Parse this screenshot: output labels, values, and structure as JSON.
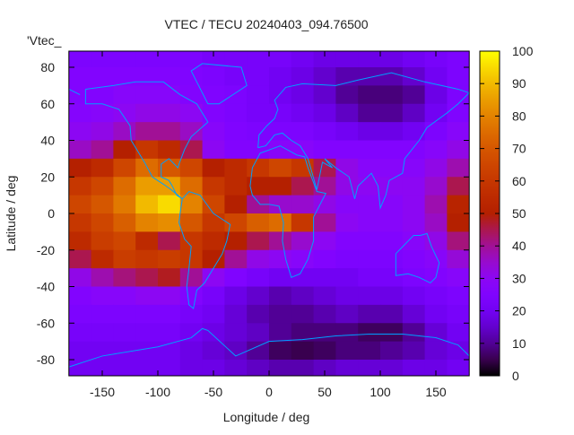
{
  "chart_data": {
    "type": "heatmap",
    "title": "VTEC / TECU 20240403_094.76500",
    "xlabel": "Longitude / deg",
    "ylabel": "Latitude / deg",
    "legend_key": "'Vtec_",
    "xlim": [
      -180,
      180
    ],
    "ylim": [
      -90,
      90
    ],
    "clim": [
      0,
      100
    ],
    "xticks": [
      "-150",
      "-100",
      "-50",
      "0",
      "50",
      "100",
      "150"
    ],
    "xtick_values": [
      -150,
      -100,
      -50,
      0,
      50,
      100,
      150
    ],
    "yticks": [
      "-80",
      "-60",
      "-40",
      "-20",
      "0",
      "20",
      "40",
      "60",
      "80"
    ],
    "ytick_values": [
      -80,
      -60,
      -40,
      -20,
      0,
      20,
      40,
      60,
      80
    ],
    "cbticks": [
      "0",
      "10",
      "20",
      "30",
      "40",
      "50",
      "60",
      "70",
      "80",
      "90",
      "100"
    ],
    "cbtick_values": [
      0,
      10,
      20,
      30,
      40,
      50,
      60,
      70,
      80,
      90,
      100
    ],
    "palette": "black-purple-red-orange-yellow",
    "coastline_color": "#00a0ff",
    "lon_centers": [
      -170,
      -150,
      -130,
      -110,
      -90,
      -70,
      -50,
      -30,
      -10,
      10,
      30,
      50,
      70,
      90,
      110,
      130,
      150,
      170
    ],
    "lat_centers": [
      85,
      75,
      65,
      55,
      45,
      35,
      25,
      15,
      5,
      -5,
      -15,
      -25,
      -35,
      -45,
      -55,
      -65,
      -75,
      -85
    ],
    "values": [
      [
        24,
        24,
        24,
        24,
        24,
        24,
        22,
        22,
        22,
        22,
        20,
        18,
        18,
        18,
        18,
        20,
        22,
        24
      ],
      [
        26,
        26,
        26,
        26,
        26,
        25,
        24,
        22,
        22,
        20,
        18,
        15,
        12,
        12,
        12,
        15,
        20,
        24
      ],
      [
        26,
        26,
        28,
        28,
        28,
        26,
        25,
        24,
        22,
        20,
        18,
        15,
        10,
        8,
        8,
        10,
        18,
        24
      ],
      [
        27,
        28,
        30,
        32,
        32,
        30,
        26,
        24,
        22,
        22,
        20,
        18,
        14,
        10,
        10,
        14,
        20,
        25
      ],
      [
        30,
        32,
        36,
        40,
        40,
        36,
        28,
        25,
        24,
        24,
        24,
        22,
        20,
        18,
        18,
        20,
        24,
        28
      ],
      [
        36,
        40,
        50,
        60,
        55,
        45,
        30,
        26,
        26,
        28,
        28,
        26,
        26,
        26,
        26,
        26,
        28,
        32
      ],
      [
        50,
        55,
        65,
        75,
        70,
        65,
        50,
        55,
        60,
        65,
        60,
        45,
        32,
        28,
        28,
        28,
        32,
        38
      ],
      [
        60,
        65,
        75,
        85,
        85,
        75,
        60,
        55,
        50,
        50,
        45,
        40,
        32,
        30,
        30,
        30,
        35,
        45
      ],
      [
        65,
        70,
        78,
        90,
        95,
        80,
        65,
        50,
        40,
        35,
        35,
        32,
        28,
        28,
        28,
        30,
        38,
        52
      ],
      [
        60,
        65,
        72,
        80,
        82,
        70,
        60,
        65,
        72,
        75,
        60,
        40,
        30,
        28,
        28,
        30,
        36,
        50
      ],
      [
        55,
        62,
        65,
        55,
        45,
        60,
        55,
        50,
        45,
        40,
        35,
        30,
        26,
        26,
        26,
        28,
        32,
        42
      ],
      [
        45,
        55,
        62,
        60,
        62,
        60,
        50,
        40,
        32,
        30,
        28,
        26,
        24,
        24,
        24,
        26,
        28,
        34
      ],
      [
        32,
        38,
        42,
        45,
        48,
        40,
        30,
        25,
        22,
        20,
        20,
        20,
        20,
        22,
        22,
        24,
        26,
        28
      ],
      [
        26,
        28,
        28,
        30,
        30,
        26,
        22,
        18,
        15,
        12,
        14,
        16,
        18,
        18,
        18,
        20,
        22,
        24
      ],
      [
        24,
        24,
        24,
        24,
        24,
        22,
        20,
        16,
        12,
        10,
        10,
        12,
        14,
        12,
        12,
        16,
        20,
        22
      ],
      [
        22,
        22,
        22,
        22,
        22,
        20,
        18,
        16,
        14,
        10,
        8,
        8,
        8,
        6,
        6,
        10,
        16,
        20
      ],
      [
        20,
        20,
        20,
        20,
        20,
        18,
        16,
        14,
        10,
        6,
        5,
        6,
        8,
        8,
        10,
        12,
        16,
        18
      ],
      [
        20,
        20,
        20,
        20,
        20,
        18,
        18,
        16,
        14,
        12,
        12,
        14,
        16,
        16,
        16,
        18,
        18,
        20
      ]
    ]
  }
}
